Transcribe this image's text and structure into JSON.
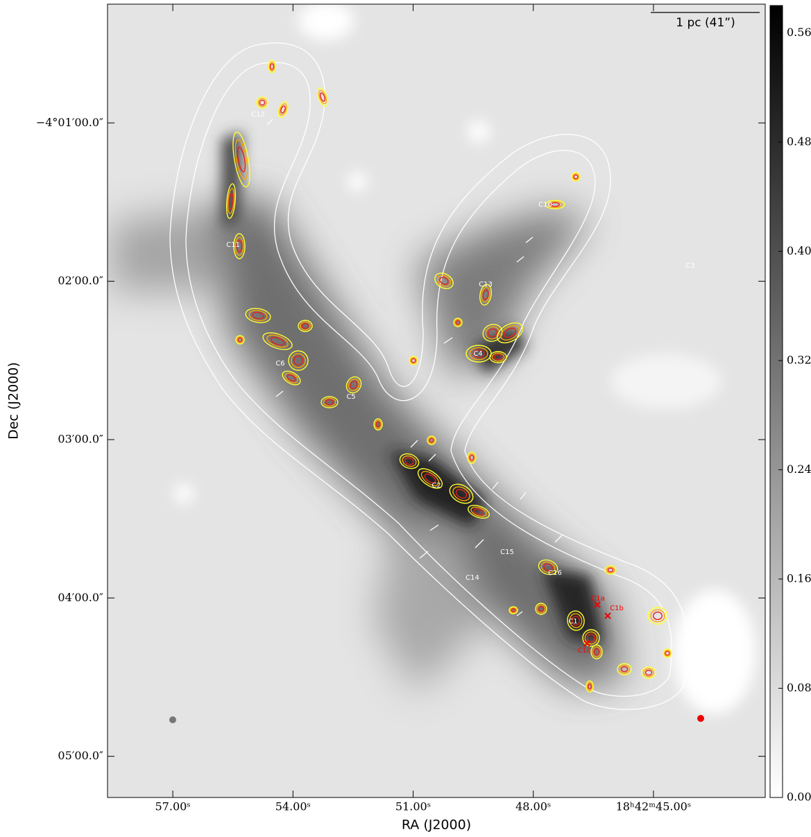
{
  "chart_data": {
    "type": "image",
    "xlabel": "RA (J2000)",
    "ylabel": "Dec (J2000)",
    "xlim": [
      58.63,
      42.21
    ],
    "xticks": [
      {
        "value": 57,
        "label": "57.00ˢ"
      },
      {
        "value": 54,
        "label": "54.00ˢ"
      },
      {
        "value": 51,
        "label": "51.00ˢ"
      },
      {
        "value": 48,
        "label": "48.00ˢ"
      },
      {
        "value": 45,
        "label": "18ʰ42ᵐ45.00ˢ"
      }
    ],
    "ylim": [
      0.25,
      5.26
    ],
    "yticks": [
      {
        "value": 1,
        "label": "−4°01′00.0″"
      },
      {
        "value": 2,
        "label": "02′00.0″"
      },
      {
        "value": 3,
        "label": "03′00.0″"
      },
      {
        "value": 4,
        "label": "04′00.0″"
      },
      {
        "value": 5,
        "label": "05′00.0″"
      }
    ],
    "colorbar": {
      "clim": [
        0,
        0.58
      ],
      "ticks": [
        {
          "value": 0,
          "label": "0.00"
        },
        0.08,
        0.16,
        0.24,
        0.32,
        {
          "value": 0.4,
          "label": "0.40"
        },
        0.48,
        0.56
      ]
    },
    "scalebar": "1 pc (41”)",
    "annotations": [
      {
        "text": "C12",
        "color": "white"
      },
      {
        "text": "C11",
        "color": "white"
      },
      {
        "text": "C10",
        "color": "white"
      },
      {
        "text": "C13",
        "color": "white"
      },
      {
        "text": "C3",
        "color": "white"
      },
      {
        "text": "C4",
        "color": "white"
      },
      {
        "text": "C6",
        "color": "white"
      },
      {
        "text": "C5",
        "color": "white"
      },
      {
        "text": "C2",
        "color": "white"
      },
      {
        "text": "C15",
        "color": "white"
      },
      {
        "text": "C14",
        "color": "white"
      },
      {
        "text": "C16",
        "color": "white"
      },
      {
        "text": "C1",
        "color": "white"
      },
      {
        "text": "C1a",
        "color": "red"
      },
      {
        "text": "C1b",
        "color": "red"
      },
      {
        "text": "C1c",
        "color": "red"
      }
    ]
  }
}
